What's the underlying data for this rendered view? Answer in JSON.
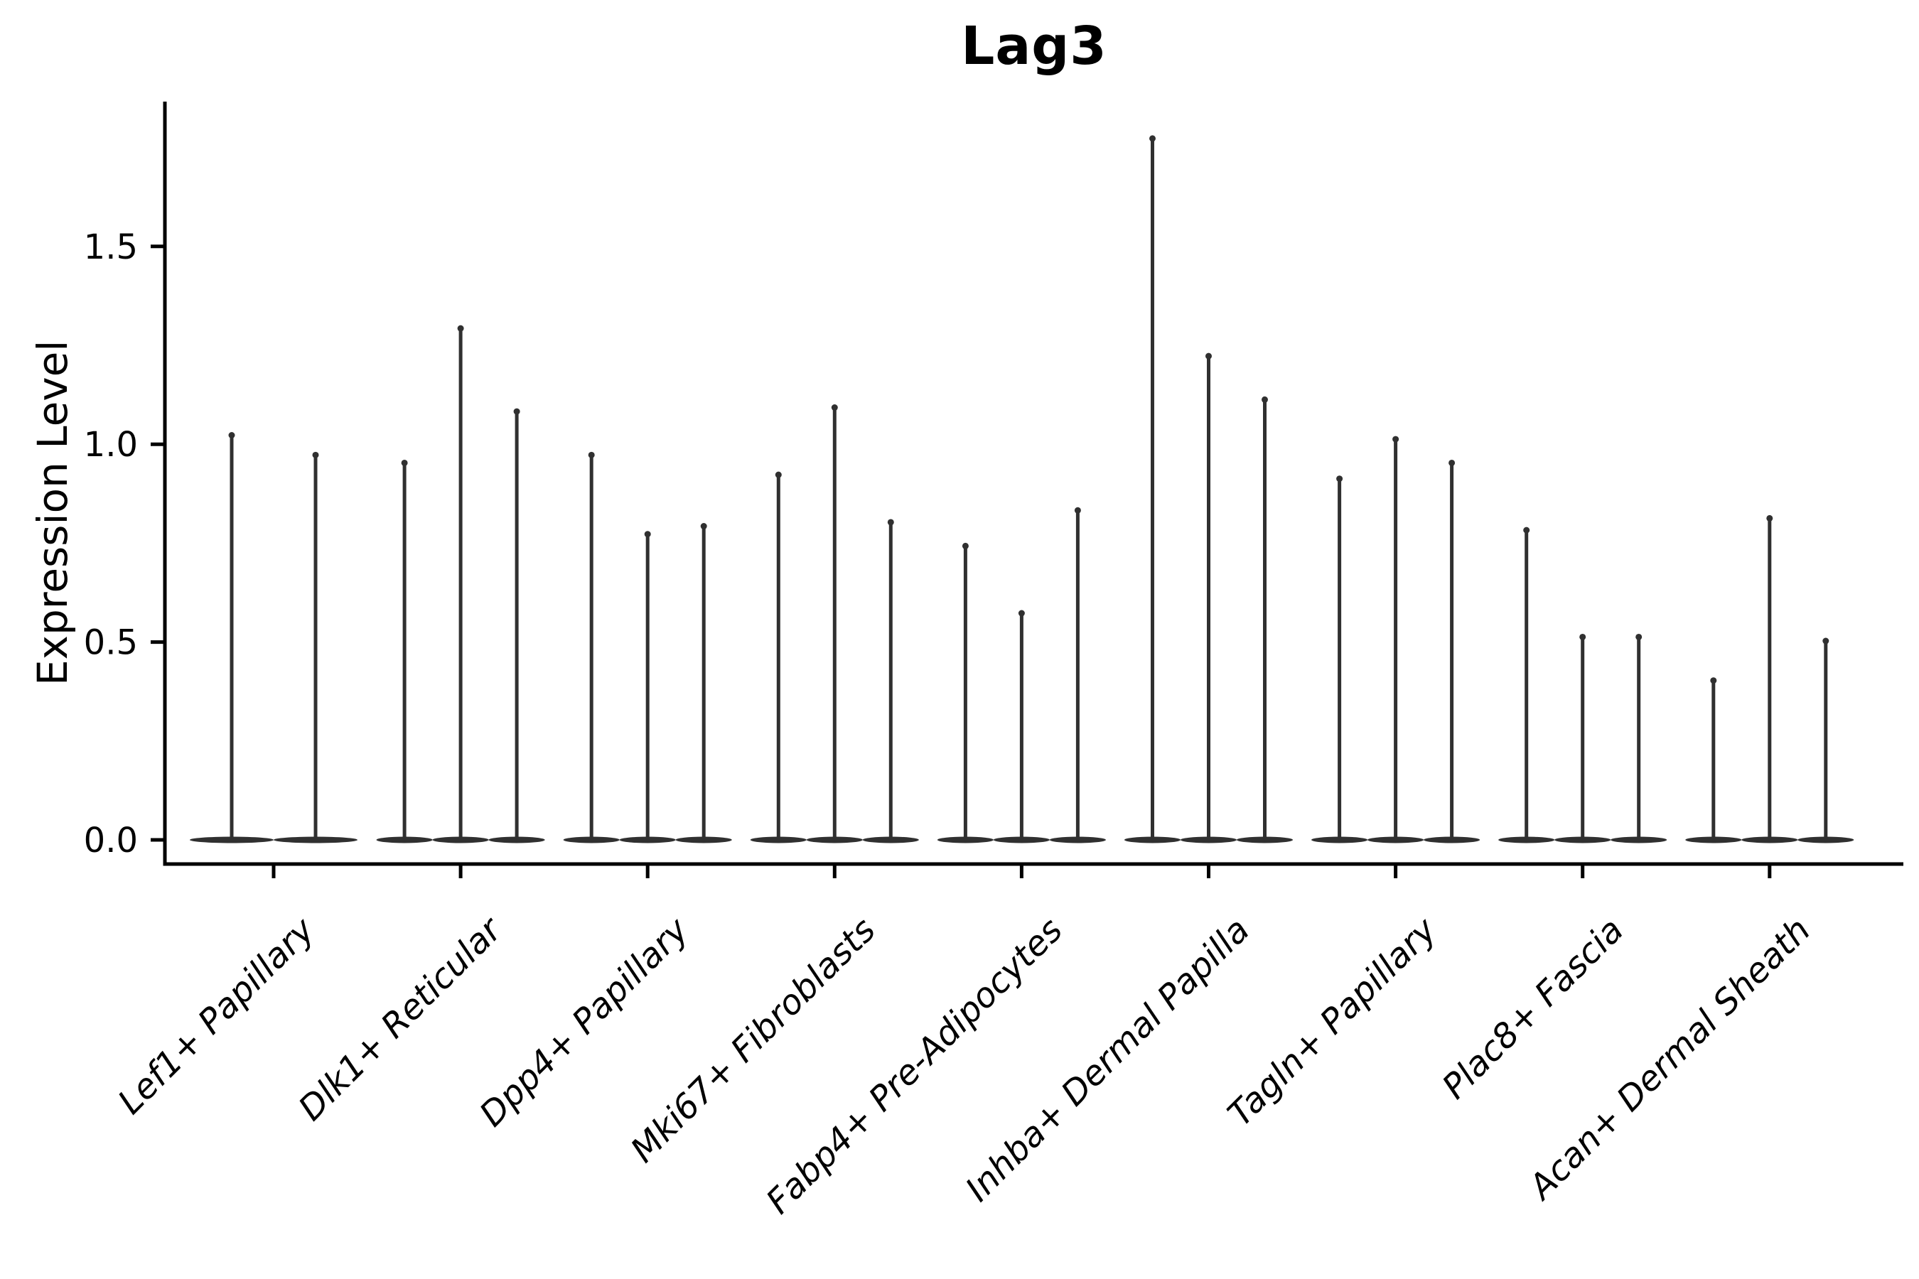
{
  "chart_data": {
    "type": "violin",
    "title": "Lag3",
    "xlabel": "",
    "ylabel": "Expression Level",
    "ytick_labels": [
      "0.0",
      "0.5",
      "1.0",
      "1.5"
    ],
    "yticks": [
      0.0,
      0.5,
      1.0,
      1.5
    ],
    "ylim": [
      0,
      1.86
    ],
    "grid": false,
    "legend_position": "none",
    "categories": [
      "Lef1+ Papillary",
      "Dlk1+ Reticular",
      "Dpp4+ Papillary",
      "Mki67+ Fibroblasts",
      "Fabp4+ Pre-Adipocytes",
      "Inhba+ Dermal Papilla",
      "Tagln+ Papillary",
      "Plac8+ Fascia",
      "Acan+ Dermal Sheath"
    ],
    "groups": [
      {
        "category": "Lef1+ Papillary",
        "violin_maxima": [
          1.03,
          0.98
        ]
      },
      {
        "category": "Dlk1+ Reticular",
        "violin_maxima": [
          0.96,
          1.3,
          1.09
        ]
      },
      {
        "category": "Dpp4+ Papillary",
        "violin_maxima": [
          0.98,
          0.78,
          0.8
        ]
      },
      {
        "category": "Mki67+ Fibroblasts",
        "violin_maxima": [
          0.93,
          1.1,
          0.81
        ]
      },
      {
        "category": "Fabp4+ Pre-Adipocytes",
        "violin_maxima": [
          0.75,
          0.58,
          0.84
        ]
      },
      {
        "category": "Inhba+ Dermal Papilla",
        "violin_maxima": [
          1.78,
          1.23,
          1.12
        ]
      },
      {
        "category": "Tagln+ Papillary",
        "violin_maxima": [
          0.92,
          1.02,
          0.96
        ]
      },
      {
        "category": "Plac8+ Fascia",
        "violin_maxima": [
          0.79,
          0.52,
          0.52
        ]
      },
      {
        "category": "Acan+ Dermal Sheath",
        "violin_maxima": [
          0.41,
          0.82,
          0.51
        ]
      }
    ],
    "violin_baseline_value": 0.0,
    "colors": {
      "violin": "#303030",
      "axis": "#000000",
      "text": "#000000",
      "background": "#ffffff"
    }
  }
}
